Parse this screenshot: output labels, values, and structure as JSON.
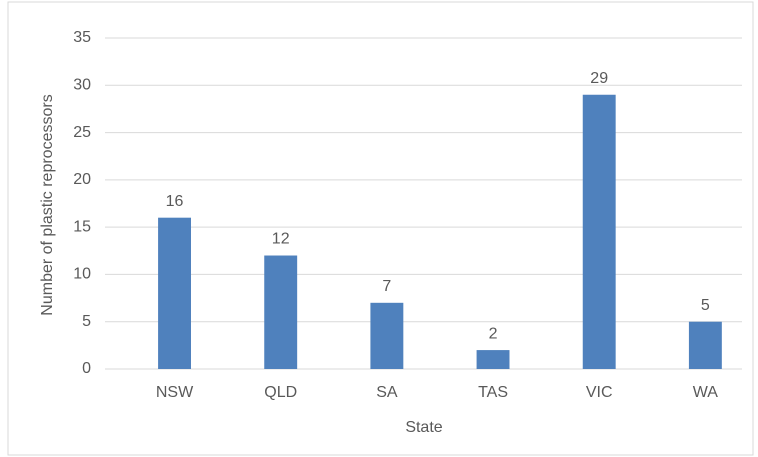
{
  "chart_data": {
    "type": "bar",
    "x_label": "State",
    "y_label": "Number of plastic reprocessors",
    "categories": [
      "NSW",
      "QLD",
      "SA",
      "TAS",
      "VIC",
      "WA"
    ],
    "values": [
      16,
      12,
      7,
      2,
      29,
      5
    ],
    "color": "#4f81bd",
    "ylim": [
      0,
      35
    ],
    "yticks": [
      0,
      5,
      10,
      15,
      20,
      25,
      30,
      35
    ],
    "grid": true,
    "data_labels": true
  }
}
